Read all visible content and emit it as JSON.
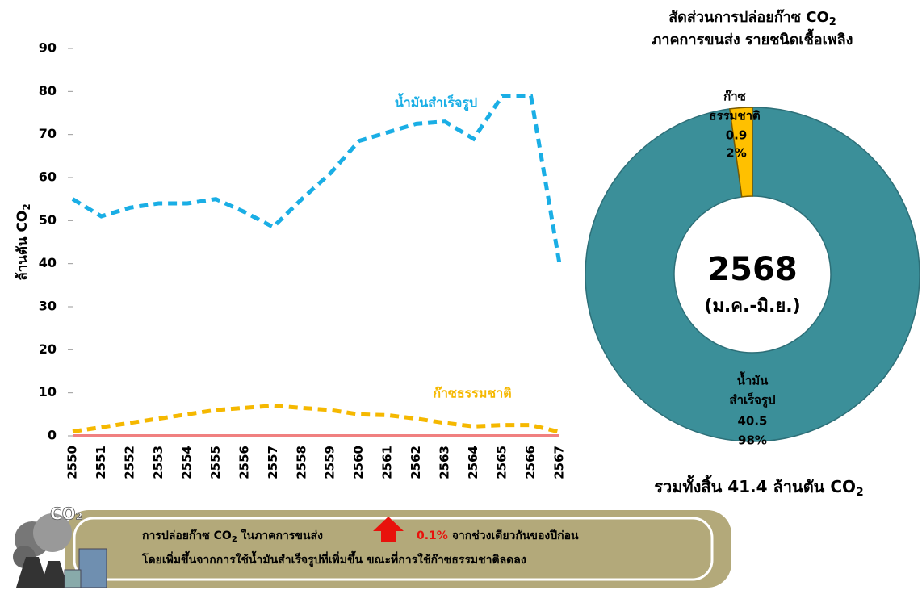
{
  "chart_data": [
    {
      "type": "line",
      "ylabel": "ล้านตัน CO",
      "ylabel_sub": "2",
      "categories": [
        "2550",
        "2551",
        "2552",
        "2553",
        "2554",
        "2555",
        "2556",
        "2557",
        "2558",
        "2559",
        "2560",
        "2561",
        "2562",
        "2563",
        "2564",
        "2565",
        "2566",
        "2567"
      ],
      "series": [
        {
          "name": "น้ำมันสำเร็จรูป",
          "color": "#1aaee5",
          "values": [
            55,
            51,
            53,
            54,
            54,
            55,
            52,
            48.5,
            55,
            61,
            68.5,
            70.5,
            72.5,
            73,
            69,
            79,
            79,
            40
          ]
        },
        {
          "name": "ก๊าซธรรมชาติ",
          "color": "#f5b800",
          "values": [
            1,
            2,
            3,
            4,
            5,
            6,
            6.5,
            7,
            6.5,
            6,
            5,
            4.8,
            4,
            3,
            2.2,
            2.5,
            2.5,
            0.9
          ]
        }
      ],
      "ylim": [
        0,
        90
      ],
      "yticks": [
        0,
        10,
        20,
        30,
        40,
        50,
        60,
        70,
        80,
        90
      ]
    },
    {
      "type": "donut",
      "title": [
        "สัดส่วนการปล่อยก๊าซ CO",
        "ภาคการขนส่ง รายชนิดเชื้อเพลิง"
      ],
      "title_sub": "2",
      "categories": [
        [
          "น้ำมัน",
          "สำเร็จรูป"
        ],
        [
          "ก๊าซ",
          "ธรรมชาติ"
        ]
      ],
      "values": [
        40.5,
        0.9
      ],
      "percent_labels": [
        "98%",
        "2%"
      ],
      "colors": [
        "#3b8f99",
        "#ffc000"
      ],
      "center": [
        "2568",
        "(ม.ค.-มิ.ย.)"
      ],
      "total": {
        "prefix": "รวมทั้งสิ้น",
        "value": 41.4,
        "suffix": "ล้านตัน CO",
        "sub": "2"
      }
    }
  ],
  "banner": {
    "line1": [
      "การปล่อยก๊าซ CO",
      "2",
      " ในภาคการขนส่ง",
      "0.1%",
      " จากช่วงเดียวกันของปีก่อน"
    ],
    "line2": "โดยเพิ่มขึ้นจากการใช้น้ำมันสำเร็จรูปที่เพิ่มขึ้น ขณะที่การใช้ก๊าซธรรมชาติลดลง"
  }
}
